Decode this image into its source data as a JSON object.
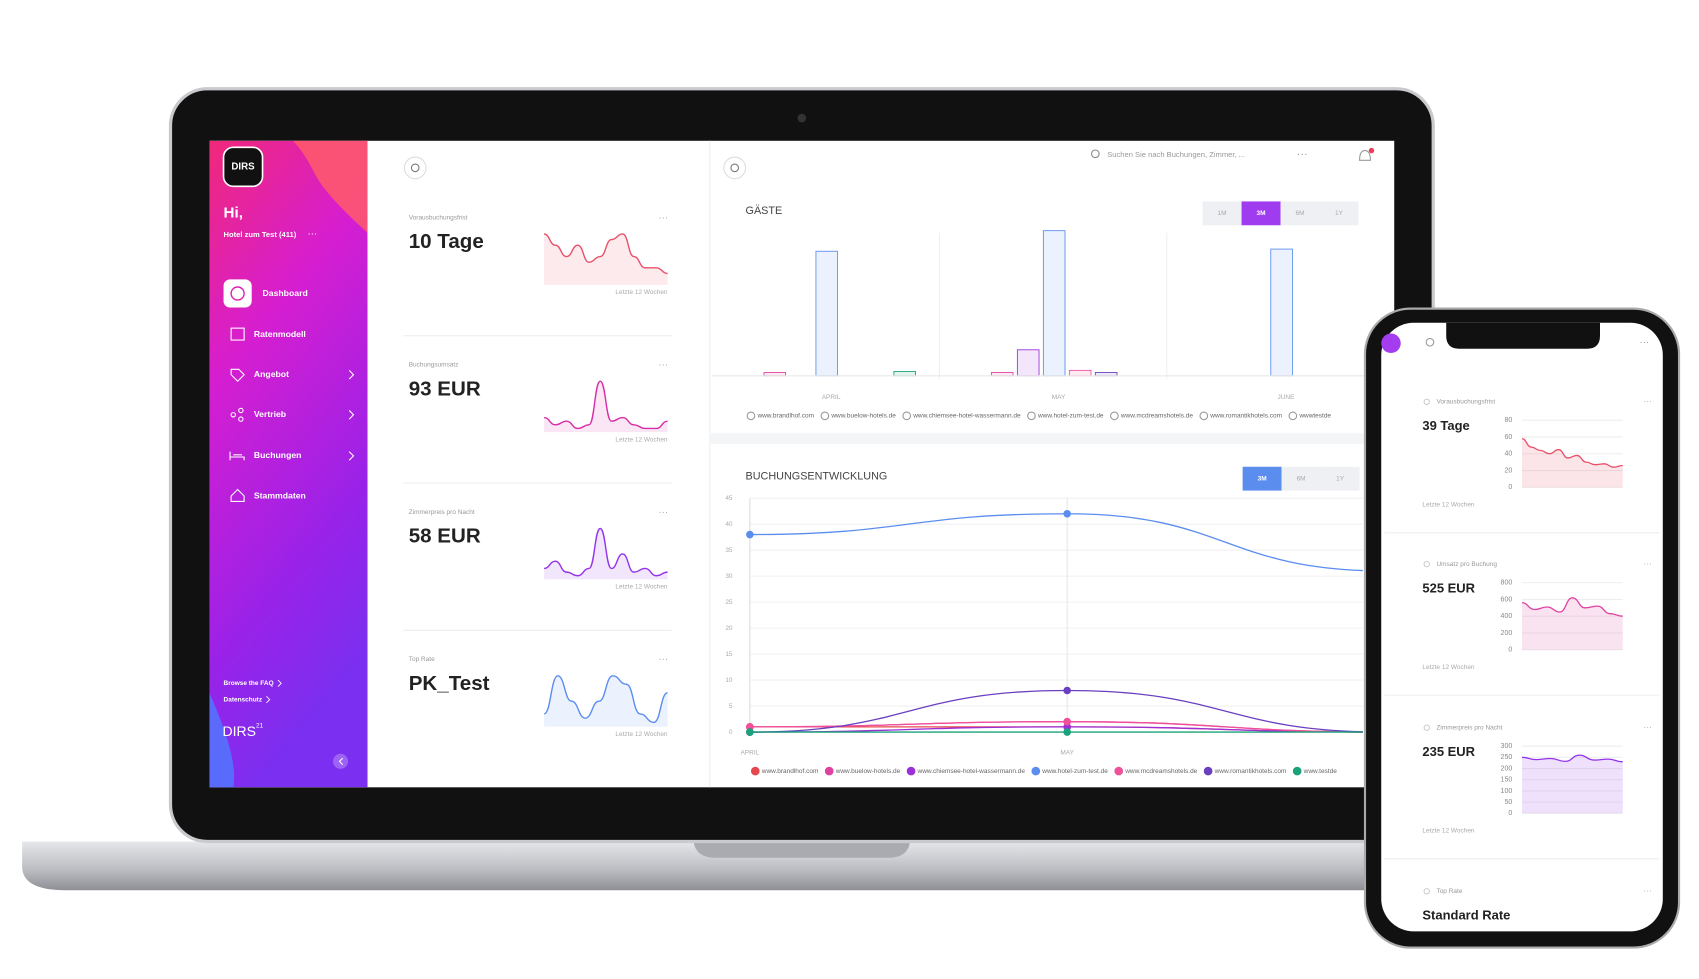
{
  "sidebar": {
    "logo": "DIRS",
    "greeting": "Hi,",
    "hotel": "Hotel zum Test (411)",
    "menu": [
      "Dashboard",
      "Ratenmodell",
      "Angebot",
      "Vertrieb",
      "Buchungen",
      "Stammdaten"
    ],
    "links": [
      "Browse the FAQ",
      "Datenschutz"
    ],
    "brand": "DIRS",
    "brand_sup": "21"
  },
  "search": "Suchen Sie nach Buchungen, Zimmer, ...",
  "cards": [
    {
      "label": "Vorausbuchungsfrist",
      "value": "10 Tage",
      "note": "Letzte 12 Wochen",
      "color": "#e8506a",
      "values": [
        9,
        7,
        5,
        7,
        4,
        5,
        8,
        9,
        5,
        3,
        3,
        2
      ]
    },
    {
      "label": "Buchungsumsatz",
      "value": "93 EUR",
      "note": "Letzte 12 Wochen",
      "color": "#d62ea8",
      "values": [
        4,
        2,
        3,
        1,
        2,
        14,
        3,
        4,
        2,
        1,
        1,
        3
      ]
    },
    {
      "label": "Zimmerpreis pro Nacht",
      "value": "58 EUR",
      "note": "Letzte 12 Wochen",
      "color": "#9333ea",
      "values": [
        3,
        5,
        2,
        1,
        3,
        14,
        3,
        7,
        2,
        3,
        1,
        2
      ]
    },
    {
      "label": "Top Rate",
      "value": "PK_Test",
      "note": "Letzte 12 Wochen",
      "color": "#5b8def",
      "values": [
        3,
        12,
        6,
        2,
        6,
        12,
        10,
        3,
        1,
        8
      ]
    }
  ],
  "guests_chart": {
    "type": "bar",
    "title": "GÄSTE",
    "periods": [
      "1M",
      "3M",
      "6M",
      "1Y"
    ],
    "active_period": "3M",
    "categories": [
      "APRIL",
      "MAY",
      "JUNE"
    ],
    "series": [
      {
        "name": "www.brandlhof.com",
        "color": "#e5484d",
        "values": [
          0,
          0,
          0
        ]
      },
      {
        "name": "www.buelow-hotels.de",
        "color": "#e040a0",
        "values": [
          3,
          3,
          0
        ]
      },
      {
        "name": "www.chiemsee-hotel-wassermann.de",
        "color": "#9b30d9",
        "values": [
          0,
          24,
          0
        ]
      },
      {
        "name": "www.hotel-zum-test.de",
        "color": "#5b8def",
        "values": [
          115,
          134,
          117
        ]
      },
      {
        "name": "www.mcdreamshotels.de",
        "color": "#f0509a",
        "values": [
          0,
          5,
          0
        ]
      },
      {
        "name": "www.romantikhotels.com",
        "color": "#6a3fc0",
        "values": [
          0,
          3,
          0
        ]
      },
      {
        "name": "wwwtestde",
        "color": "#1aa37a",
        "values": [
          4,
          0,
          0
        ]
      }
    ]
  },
  "bookings_chart": {
    "type": "line",
    "title": "BUCHUNGSENTWICKLUNG",
    "periods": [
      "3M",
      "6M",
      "1Y"
    ],
    "active_period": "3M",
    "x": [
      "APRIL",
      "MAY",
      null
    ],
    "ylim": [
      0,
      45
    ],
    "yticks": [
      0,
      5,
      10,
      15,
      20,
      25,
      30,
      35,
      40,
      45
    ],
    "grid": true,
    "series": [
      {
        "name": "www.brandlhof.com",
        "color": "#e5484d",
        "values": [
          1,
          1,
          0
        ]
      },
      {
        "name": "www.buelow-hotels.de",
        "color": "#e040a0",
        "values": [
          1,
          2,
          0
        ]
      },
      {
        "name": "www.chiemsee-hotel-wassermann.de",
        "color": "#9b30d9",
        "values": [
          0,
          1,
          0
        ]
      },
      {
        "name": "www.hotel-zum-test.de",
        "color": "#5b8def",
        "values": [
          38,
          42,
          31
        ]
      },
      {
        "name": "www.mcdreamshotels.de",
        "color": "#f0509a",
        "values": [
          1,
          2,
          0
        ]
      },
      {
        "name": "www.romantikhotels.com",
        "color": "#6a3fc0",
        "values": [
          0,
          8,
          0
        ]
      },
      {
        "name": "www.testde",
        "color": "#1aa37a",
        "values": [
          0,
          0,
          0
        ]
      }
    ]
  },
  "phone": {
    "cards": [
      {
        "label": "Vorausbuchungsfrist",
        "value": "39 Tage",
        "note": "Letzte 12 Wochen",
        "color": "#e8506a",
        "ylim": [
          0,
          80
        ],
        "yticks": [
          0,
          20,
          40,
          60,
          80
        ],
        "values": [
          58,
          48,
          44,
          40,
          45,
          35,
          38,
          30,
          27,
          28,
          24,
          26
        ]
      },
      {
        "label": "Umsatz pro Buchung",
        "value": "525 EUR",
        "note": "Letzte 12 Wochen",
        "color": "#e040a0",
        "ylim": [
          0,
          800
        ],
        "yticks": [
          0,
          200,
          400,
          600,
          800
        ],
        "values": [
          560,
          480,
          510,
          450,
          620,
          500,
          520,
          430,
          400
        ]
      },
      {
        "label": "Zimmerpreis pro Nacht",
        "value": "235 EUR",
        "note": "Letzte 12 Wochen",
        "color": "#9333ea",
        "ylim": [
          0,
          300
        ],
        "yticks": [
          0,
          50,
          100,
          150,
          200,
          250,
          300
        ],
        "values": [
          250,
          240,
          245,
          232,
          260,
          238,
          242,
          230
        ]
      },
      {
        "label": "Top Rate",
        "value": "Standard Rate"
      }
    ]
  }
}
